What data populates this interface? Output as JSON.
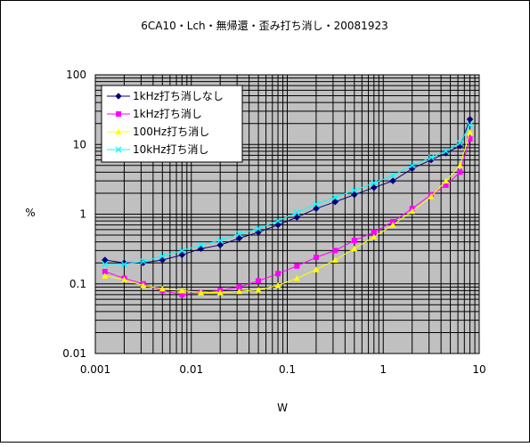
{
  "chart_data": {
    "type": "line",
    "title": "6CA10・Lch・無帰還・歪み打ち消し・20081923",
    "xlabel": "W",
    "ylabel": "%",
    "xscale": "log",
    "yscale": "log",
    "xlim": [
      0.001,
      10
    ],
    "ylim": [
      0.01,
      100
    ],
    "grid": true,
    "legend_position": "top-left",
    "x_tick_labels": [
      "0.001",
      "0.01",
      "0.1",
      "1",
      "10"
    ],
    "y_tick_labels": [
      "0.01",
      "0.1",
      "1",
      "10",
      "100"
    ],
    "series": [
      {
        "name": "1kHz打ち消しなし",
        "color": "#000080",
        "marker": "diamond",
        "x": [
          0.00126,
          0.002,
          0.00316,
          0.005,
          0.008,
          0.0126,
          0.02,
          0.0316,
          0.05,
          0.08,
          0.126,
          0.2,
          0.316,
          0.5,
          0.8,
          1.26,
          2,
          3.16,
          4.5,
          6.3,
          8
        ],
        "y": [
          0.22,
          0.2,
          0.2,
          0.22,
          0.26,
          0.32,
          0.36,
          0.45,
          0.55,
          0.7,
          0.9,
          1.2,
          1.5,
          1.9,
          2.4,
          3.0,
          4.5,
          6.0,
          7.5,
          9.5,
          23
        ]
      },
      {
        "name": "1kHz打ち消し",
        "color": "#ff00ff",
        "marker": "square",
        "x": [
          0.00126,
          0.002,
          0.00316,
          0.005,
          0.008,
          0.0126,
          0.02,
          0.0316,
          0.05,
          0.08,
          0.126,
          0.2,
          0.316,
          0.5,
          0.8,
          1.26,
          2,
          3.16,
          4.5,
          6.3,
          8
        ],
        "y": [
          0.15,
          0.12,
          0.1,
          0.08,
          0.07,
          0.075,
          0.08,
          0.09,
          0.11,
          0.14,
          0.18,
          0.24,
          0.3,
          0.42,
          0.55,
          0.78,
          1.2,
          1.9,
          2.6,
          4.0,
          12
        ]
      },
      {
        "name": "100Hz打ち消し",
        "color": "#ffff00",
        "marker": "triangle",
        "x": [
          0.00126,
          0.002,
          0.00316,
          0.005,
          0.008,
          0.0126,
          0.02,
          0.0316,
          0.05,
          0.08,
          0.126,
          0.2,
          0.316,
          0.5,
          0.8,
          1.26,
          2,
          3.16,
          4.5,
          6.3,
          8
        ],
        "y": [
          0.13,
          0.115,
          0.095,
          0.085,
          0.08,
          0.075,
          0.075,
          0.078,
          0.082,
          0.095,
          0.12,
          0.16,
          0.22,
          0.32,
          0.47,
          0.7,
          1.1,
          1.8,
          3.0,
          5.0,
          15
        ]
      },
      {
        "name": "10kHz打ち消し",
        "color": "#00ffff",
        "marker": "x",
        "x": [
          0.00126,
          0.002,
          0.00316,
          0.005,
          0.008,
          0.0126,
          0.02,
          0.0316,
          0.05,
          0.08,
          0.126,
          0.2,
          0.316,
          0.5,
          0.8,
          1.26,
          2,
          3.16,
          4.5,
          6.3,
          8
        ],
        "y": [
          0.19,
          0.19,
          0.21,
          0.25,
          0.3,
          0.36,
          0.42,
          0.52,
          0.62,
          0.8,
          1.05,
          1.4,
          1.75,
          2.2,
          2.8,
          3.6,
          5.0,
          6.5,
          8.0,
          10.5,
          19
        ]
      }
    ]
  }
}
